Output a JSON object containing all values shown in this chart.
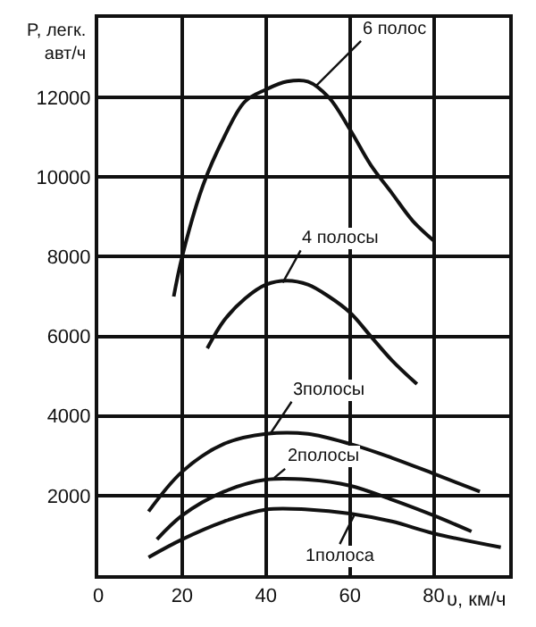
{
  "chart_data": {
    "type": "line",
    "xlabel": "υ, км/ч",
    "ylabel": "P, легк. авт/ч",
    "xlim": [
      0,
      98
    ],
    "ylim": [
      0,
      14000
    ],
    "xticks": [
      0,
      20,
      40,
      60,
      80
    ],
    "yticks": [
      2000,
      4000,
      6000,
      8000,
      10000,
      12000
    ],
    "grid": true,
    "marker": "none",
    "line_style": "solid",
    "series": [
      {
        "color": "#111111",
        "x": [
          18,
          20,
          25,
          30,
          35,
          40,
          45,
          50,
          55,
          60,
          65,
          70,
          75,
          80
        ],
        "values": [
          7000,
          8000,
          9800,
          11000,
          11900,
          12200,
          12400,
          12400,
          12000,
          11200,
          10300,
          9600,
          8900,
          8400
        ]
      },
      {
        "color": "#111111",
        "x": [
          26,
          30,
          35,
          40,
          45,
          50,
          55,
          60,
          65,
          70,
          76
        ],
        "values": [
          5700,
          6400,
          6950,
          7300,
          7400,
          7300,
          7000,
          6600,
          6000,
          5400,
          4800
        ]
      },
      {
        "color": "#111111",
        "x": [
          12,
          20,
          30,
          40,
          50,
          60,
          70,
          80,
          91
        ],
        "values": [
          1600,
          2600,
          3300,
          3550,
          3550,
          3300,
          2950,
          2550,
          2100
        ]
      },
      {
        "color": "#111111",
        "x": [
          14,
          20,
          30,
          40,
          50,
          60,
          70,
          80,
          89
        ],
        "values": [
          900,
          1500,
          2100,
          2400,
          2400,
          2250,
          1900,
          1500,
          1100
        ]
      },
      {
        "color": "#111111",
        "x": [
          12,
          20,
          30,
          40,
          50,
          60,
          70,
          80,
          96
        ],
        "values": [
          450,
          900,
          1350,
          1650,
          1650,
          1550,
          1350,
          1050,
          700
        ]
      }
    ],
    "annotations": [
      {
        "text": "6 полос",
        "x": 52,
        "y": 12300
      },
      {
        "text": "4 полосы",
        "x": 44,
        "y": 7350
      },
      {
        "text": "3полосы",
        "x": 41,
        "y": 3550
      },
      {
        "text": "2полосы",
        "x": 42,
        "y": 2450
      },
      {
        "text": "1полоса",
        "x": 61,
        "y": 1500
      }
    ]
  }
}
